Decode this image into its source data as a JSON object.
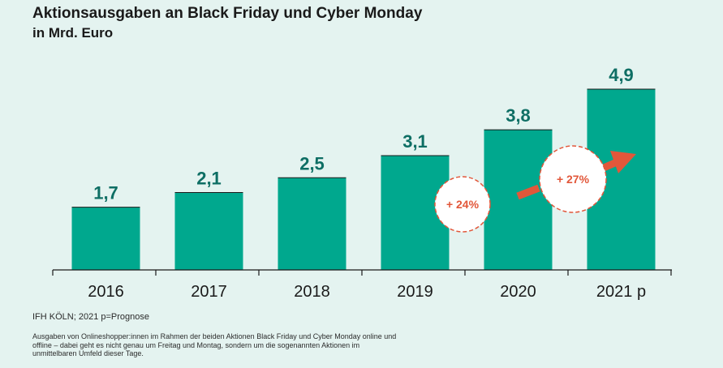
{
  "chart_data": {
    "type": "bar",
    "title": "Aktionsausgaben an Black Friday und Cyber Monday",
    "subtitle": "in Mrd. Euro",
    "categories": [
      "2016",
      "2017",
      "2018",
      "2019",
      "2020",
      "2021 p"
    ],
    "values": [
      1.7,
      2.1,
      2.5,
      3.1,
      3.8,
      4.9
    ],
    "value_labels": [
      "1,7",
      "2,1",
      "2,5",
      "3,1",
      "3,8",
      "4,9"
    ],
    "ylim": [
      0,
      6
    ],
    "bar_color": "#00a88e",
    "value_label_color": "#0e6e64",
    "annotations": [
      {
        "text": "+ 24%",
        "from_category": "2019",
        "to_category": "2020",
        "color": "#e2573a"
      },
      {
        "text": "+ 27%",
        "from_category": "2020",
        "to_category": "2021 p",
        "color": "#e2573a"
      }
    ],
    "grid": false,
    "legend": "none"
  },
  "source": "IFH KÖLN; 2021 p=Prognose",
  "footnote": "Ausgaben von Onlineshopper:innen im Rahmen der beiden Aktionen Black Friday und Cyber Monday online und offline – dabei geht es nicht genau um Freitag und Montag, sondern um die sogenannten Aktionen im unmittelbaren Umfeld dieser Tage."
}
